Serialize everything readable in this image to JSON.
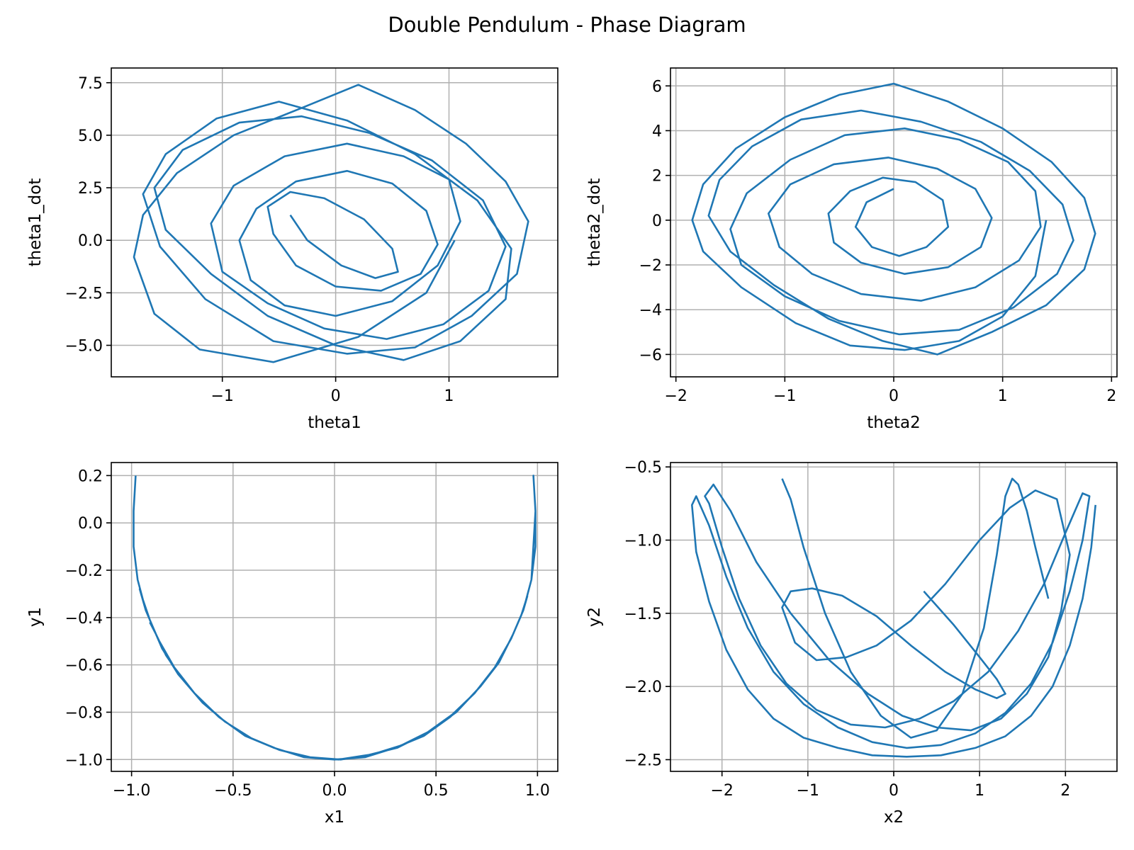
{
  "figure_title": "Double Pendulum - Phase Diagram",
  "colors": {
    "line": "#1f77b4",
    "grid": "#b0b0b0",
    "axes": "#000000"
  },
  "chart_data": [
    {
      "type": "line",
      "xlabel": "theta1",
      "ylabel": "theta1_dot",
      "xlim": [
        -1.98,
        1.96
      ],
      "ylim": [
        -6.5,
        8.2
      ],
      "grid": true,
      "xticks": [
        {
          "v": -1,
          "label": "−1"
        },
        {
          "v": 0,
          "label": "0"
        },
        {
          "v": 1,
          "label": "1"
        }
      ],
      "yticks": [
        {
          "v": -5,
          "label": "−5.0"
        },
        {
          "v": -2.5,
          "label": "−2.5"
        },
        {
          "v": 0,
          "label": "0.0"
        },
        {
          "v": 2.5,
          "label": "2.5"
        },
        {
          "v": 5,
          "label": "5.0"
        },
        {
          "v": 7.5,
          "label": "7.5"
        }
      ],
      "series": [
        {
          "x": [
            1.05,
            0.8,
            0.2,
            -0.55,
            -1.2,
            -1.6,
            -1.78,
            -1.7,
            -1.4,
            -0.9,
            -0.3,
            0.2,
            0.7,
            1.15,
            1.5,
            1.7,
            1.6,
            1.2,
            0.7,
            0.1,
            -0.55,
            -1.15,
            -1.55,
            -1.7,
            -1.5,
            -1.05,
            -0.5,
            0.1,
            0.7,
            1.25,
            1.55,
            1.5,
            1.1,
            0.6,
            0.0,
            -0.6,
            -1.1,
            -1.5,
            -1.6,
            -1.35,
            -0.85,
            -0.3,
            0.3,
            0.85,
            1.3,
            1.5,
            1.35,
            0.95,
            0.45,
            -0.1,
            -0.6,
            -1.0,
            -1.1,
            -0.9,
            -0.45,
            0.1,
            0.6,
            1.0,
            1.1,
            0.9,
            0.5,
            0.0,
            -0.45,
            -0.75,
            -0.85,
            -0.7,
            -0.35,
            0.1,
            0.5,
            0.8,
            0.9,
            0.75,
            0.4,
            0.0,
            -0.35,
            -0.55,
            -0.6,
            -0.4,
            -0.1,
            0.25,
            0.5,
            0.55,
            0.35,
            0.05,
            -0.25,
            -0.4
          ],
          "y": [
            0.0,
            -2.5,
            -4.6,
            -5.8,
            -5.2,
            -3.5,
            -0.8,
            1.2,
            3.2,
            5.0,
            6.3,
            7.4,
            6.2,
            4.6,
            2.8,
            0.9,
            -1.6,
            -3.6,
            -5.1,
            -5.4,
            -4.8,
            -2.8,
            -0.3,
            2.2,
            4.1,
            5.8,
            6.6,
            5.7,
            4.1,
            1.9,
            -0.4,
            -2.8,
            -4.8,
            -5.7,
            -5.0,
            -3.6,
            -1.6,
            0.5,
            2.5,
            4.3,
            5.6,
            5.9,
            5.1,
            3.8,
            1.9,
            -0.3,
            -2.4,
            -4.0,
            -4.7,
            -4.2,
            -3.0,
            -1.5,
            0.8,
            2.6,
            4.0,
            4.6,
            4.0,
            2.9,
            0.9,
            -1.2,
            -2.9,
            -3.6,
            -3.1,
            -1.9,
            0.0,
            1.5,
            2.8,
            3.3,
            2.7,
            1.4,
            -0.2,
            -1.6,
            -2.4,
            -2.2,
            -1.2,
            0.3,
            1.6,
            2.3,
            2.0,
            1.0,
            -0.4,
            -1.5,
            -1.8,
            -1.2,
            0.0,
            1.2
          ]
        }
      ]
    },
    {
      "type": "line",
      "xlabel": "theta2",
      "ylabel": "theta2_dot",
      "xlim": [
        -2.05,
        2.05
      ],
      "ylim": [
        -7.0,
        6.8
      ],
      "grid": true,
      "xticks": [
        {
          "v": -2,
          "label": "−2"
        },
        {
          "v": -1,
          "label": "−1"
        },
        {
          "v": 0,
          "label": "0"
        },
        {
          "v": 1,
          "label": "1"
        },
        {
          "v": 2,
          "label": "2"
        }
      ],
      "yticks": [
        {
          "v": -6,
          "label": "−6"
        },
        {
          "v": -4,
          "label": "−4"
        },
        {
          "v": -2,
          "label": "−2"
        },
        {
          "v": 0,
          "label": "0"
        },
        {
          "v": 2,
          "label": "2"
        },
        {
          "v": 4,
          "label": "4"
        },
        {
          "v": 6,
          "label": "6"
        }
      ],
      "series": [
        {
          "x": [
            1.4,
            1.3,
            1.0,
            0.6,
            0.1,
            -0.4,
            -0.9,
            -1.4,
            -1.75,
            -1.85,
            -1.75,
            -1.45,
            -1.0,
            -0.5,
            0.0,
            0.5,
            1.0,
            1.45,
            1.75,
            1.85,
            1.75,
            1.4,
            0.9,
            0.4,
            -0.1,
            -0.6,
            -1.1,
            -1.5,
            -1.7,
            -1.6,
            -1.3,
            -0.85,
            -0.3,
            0.25,
            0.8,
            1.25,
            1.55,
            1.65,
            1.5,
            1.1,
            0.6,
            0.05,
            -0.5,
            -1.0,
            -1.4,
            -1.5,
            -1.35,
            -0.95,
            -0.45,
            0.1,
            0.6,
            1.05,
            1.3,
            1.35,
            1.15,
            0.75,
            0.25,
            -0.3,
            -0.75,
            -1.05,
            -1.15,
            -0.95,
            -0.55,
            -0.05,
            0.4,
            0.75,
            0.9,
            0.8,
            0.5,
            0.1,
            -0.3,
            -0.55,
            -0.6,
            -0.4,
            -0.1,
            0.2,
            0.45,
            0.5,
            0.3,
            0.05,
            -0.2,
            -0.35,
            -0.25,
            0.0
          ],
          "y": [
            0.0,
            -2.5,
            -4.3,
            -5.4,
            -5.8,
            -5.6,
            -4.6,
            -3.0,
            -1.4,
            0.0,
            1.6,
            3.2,
            4.6,
            5.6,
            6.1,
            5.3,
            4.1,
            2.6,
            1.0,
            -0.6,
            -2.2,
            -3.8,
            -5.0,
            -6.0,
            -5.4,
            -4.4,
            -2.9,
            -1.4,
            0.2,
            1.8,
            3.3,
            4.5,
            4.9,
            4.4,
            3.5,
            2.2,
            0.7,
            -0.9,
            -2.4,
            -3.9,
            -4.9,
            -5.1,
            -4.5,
            -3.4,
            -2.0,
            -0.4,
            1.2,
            2.7,
            3.8,
            4.1,
            3.6,
            2.6,
            1.3,
            -0.3,
            -1.8,
            -3.0,
            -3.6,
            -3.3,
            -2.4,
            -1.2,
            0.3,
            1.6,
            2.5,
            2.8,
            2.3,
            1.4,
            0.1,
            -1.2,
            -2.1,
            -2.4,
            -1.9,
            -1.0,
            0.3,
            1.3,
            1.9,
            1.7,
            0.9,
            -0.3,
            -1.2,
            -1.6,
            -1.2,
            -0.3,
            0.8,
            1.4
          ]
        }
      ]
    },
    {
      "type": "line",
      "xlabel": "x1",
      "ylabel": "y1",
      "xlim": [
        -1.1,
        1.1
      ],
      "ylim": [
        -1.05,
        0.255
      ],
      "grid": true,
      "xticks": [
        {
          "v": -1.0,
          "label": "−1.0"
        },
        {
          "v": -0.5,
          "label": "−0.5"
        },
        {
          "v": 0.0,
          "label": "0.0"
        },
        {
          "v": 0.5,
          "label": "0.5"
        },
        {
          "v": 1.0,
          "label": "1.0"
        }
      ],
      "yticks": [
        {
          "v": -1.0,
          "label": "−1.0"
        },
        {
          "v": -0.8,
          "label": "−0.8"
        },
        {
          "v": -0.6,
          "label": "−0.6"
        },
        {
          "v": -0.4,
          "label": "−0.4"
        },
        {
          "v": -0.2,
          "label": "−0.2"
        },
        {
          "v": 0.0,
          "label": "0.0"
        },
        {
          "v": 0.2,
          "label": "0.2"
        }
      ],
      "series": [
        {
          "x": [
            -0.98,
            -0.99,
            -0.99,
            -0.97,
            -0.93,
            -0.87,
            -0.79,
            -0.69,
            -0.57,
            -0.44,
            -0.3,
            -0.15,
            0.0,
            0.15,
            0.3,
            0.44,
            0.57,
            0.69,
            0.79,
            0.87,
            0.93,
            0.97,
            0.99,
            0.99,
            0.98,
            0.99,
            0.97,
            0.93,
            0.87,
            0.79,
            0.69,
            0.57,
            0.44,
            0.3,
            0.15,
            0.0,
            -0.15,
            -0.3,
            -0.44,
            -0.57,
            -0.69,
            -0.79,
            -0.87,
            -0.93,
            -0.96,
            -0.95,
            -0.91,
            -0.85,
            -0.77,
            -0.66,
            -0.54,
            -0.41,
            -0.27,
            -0.13,
            0.02,
            0.17,
            0.31,
            0.45,
            0.58,
            0.69,
            0.79,
            0.87,
            0.92,
            0.95,
            0.93,
            0.88,
            0.81,
            0.72,
            0.6,
            0.47,
            0.33,
            0.18,
            0.03,
            -0.12,
            -0.27,
            -0.41,
            -0.54,
            -0.65,
            -0.75,
            -0.83,
            -0.88,
            -0.91
          ],
          "y": [
            0.2,
            0.05,
            -0.1,
            -0.24,
            -0.37,
            -0.49,
            -0.61,
            -0.72,
            -0.82,
            -0.9,
            -0.95,
            -0.99,
            -1.0,
            -0.99,
            -0.95,
            -0.9,
            -0.82,
            -0.72,
            -0.61,
            -0.49,
            -0.37,
            -0.24,
            -0.1,
            0.05,
            0.2,
            0.05,
            -0.24,
            -0.37,
            -0.49,
            -0.61,
            -0.72,
            -0.82,
            -0.9,
            -0.95,
            -0.99,
            -1.0,
            -0.99,
            -0.95,
            -0.9,
            -0.82,
            -0.72,
            -0.61,
            -0.49,
            -0.37,
            -0.28,
            -0.31,
            -0.41,
            -0.53,
            -0.64,
            -0.75,
            -0.84,
            -0.91,
            -0.96,
            -0.99,
            -1.0,
            -0.98,
            -0.95,
            -0.89,
            -0.81,
            -0.72,
            -0.61,
            -0.49,
            -0.39,
            -0.31,
            -0.37,
            -0.47,
            -0.59,
            -0.69,
            -0.8,
            -0.88,
            -0.94,
            -0.98,
            -1.0,
            -0.99,
            -0.96,
            -0.91,
            -0.84,
            -0.76,
            -0.66,
            -0.56,
            -0.47,
            -0.42
          ]
        }
      ]
    },
    {
      "type": "line",
      "xlabel": "x2",
      "ylabel": "y2",
      "xlim": [
        -2.6,
        2.6
      ],
      "ylim": [
        -2.58,
        -0.47
      ],
      "grid": true,
      "xticks": [
        {
          "v": -2,
          "label": "−2"
        },
        {
          "v": -1,
          "label": "−1"
        },
        {
          "v": 0,
          "label": "0"
        },
        {
          "v": 1,
          "label": "1"
        },
        {
          "v": 2,
          "label": "2"
        }
      ],
      "yticks": [
        {
          "v": -2.5,
          "label": "−2.5"
        },
        {
          "v": -2.0,
          "label": "−2.0"
        },
        {
          "v": -1.5,
          "label": "−1.5"
        },
        {
          "v": -1.0,
          "label": "−1.0"
        },
        {
          "v": -0.5,
          "label": "−0.5"
        }
      ],
      "series": [
        {
          "x": [
            2.35,
            2.3,
            2.2,
            2.05,
            1.85,
            1.6,
            1.3,
            0.95,
            0.55,
            0.15,
            -0.25,
            -0.65,
            -1.05,
            -1.4,
            -1.7,
            -1.95,
            -2.15,
            -2.3,
            -2.35,
            -2.3,
            -2.15,
            -1.95,
            -1.7,
            -1.4,
            -1.05,
            -0.65,
            -0.25,
            0.15,
            0.55,
            0.95,
            1.3,
            1.6,
            1.85,
            2.05,
            2.2,
            2.28,
            2.2,
            2.0,
            1.75,
            1.45,
            1.1,
            0.7,
            0.3,
            -0.1,
            -0.5,
            -0.9,
            -1.25,
            -1.55,
            -1.8,
            -2.0,
            -2.15,
            -2.2,
            -2.1,
            -1.9,
            -1.6,
            -1.2,
            -0.75,
            -0.3,
            0.1,
            0.5,
            0.9,
            1.25,
            1.55,
            1.8,
            1.95,
            2.05,
            1.9,
            1.65,
            1.35,
            1.0,
            0.6,
            0.2,
            -0.2,
            -0.55,
            -0.9,
            -1.15,
            -1.3,
            -1.2,
            -0.95,
            -0.6,
            -0.2,
            0.2,
            0.6,
            0.95,
            1.2,
            1.3,
            1.2,
            1.0,
            0.7,
            0.35
          ],
          "y": [
            -0.76,
            -1.05,
            -1.4,
            -1.72,
            -2.0,
            -2.2,
            -2.34,
            -2.42,
            -2.47,
            -2.48,
            -2.47,
            -2.42,
            -2.35,
            -2.22,
            -2.02,
            -1.75,
            -1.42,
            -1.08,
            -0.76,
            -0.7,
            -0.9,
            -1.25,
            -1.6,
            -1.9,
            -2.12,
            -2.28,
            -2.38,
            -2.42,
            -2.4,
            -2.32,
            -2.18,
            -1.98,
            -1.7,
            -1.35,
            -1.0,
            -0.7,
            -0.68,
            -0.95,
            -1.3,
            -1.62,
            -1.9,
            -2.1,
            -2.22,
            -2.28,
            -2.26,
            -2.16,
            -1.98,
            -1.72,
            -1.4,
            -1.05,
            -0.75,
            -0.7,
            -0.62,
            -0.8,
            -1.15,
            -1.5,
            -1.82,
            -2.05,
            -2.2,
            -2.28,
            -2.3,
            -2.22,
            -2.05,
            -1.8,
            -1.48,
            -1.1,
            -0.72,
            -0.66,
            -0.78,
            -1.0,
            -1.3,
            -1.55,
            -1.72,
            -1.8,
            -1.82,
            -1.7,
            -1.46,
            -1.35,
            -1.33,
            -1.38,
            -1.52,
            -1.72,
            -1.9,
            -2.02,
            -2.08,
            -2.05,
            -1.95,
            -1.8,
            -1.58,
            -1.35
          ]
        },
        {
          "x": [
            -1.3,
            -1.2,
            -1.05,
            -0.8,
            -0.5,
            -0.15,
            0.2,
            0.5,
            0.8,
            1.05,
            1.2,
            1.3,
            1.38,
            1.45,
            1.55,
            1.65,
            1.8
          ],
          "y": [
            -0.58,
            -0.72,
            -1.05,
            -1.5,
            -1.9,
            -2.2,
            -2.35,
            -2.3,
            -2.05,
            -1.6,
            -1.1,
            -0.7,
            -0.58,
            -0.62,
            -0.8,
            -1.05,
            -1.4
          ]
        }
      ]
    }
  ]
}
